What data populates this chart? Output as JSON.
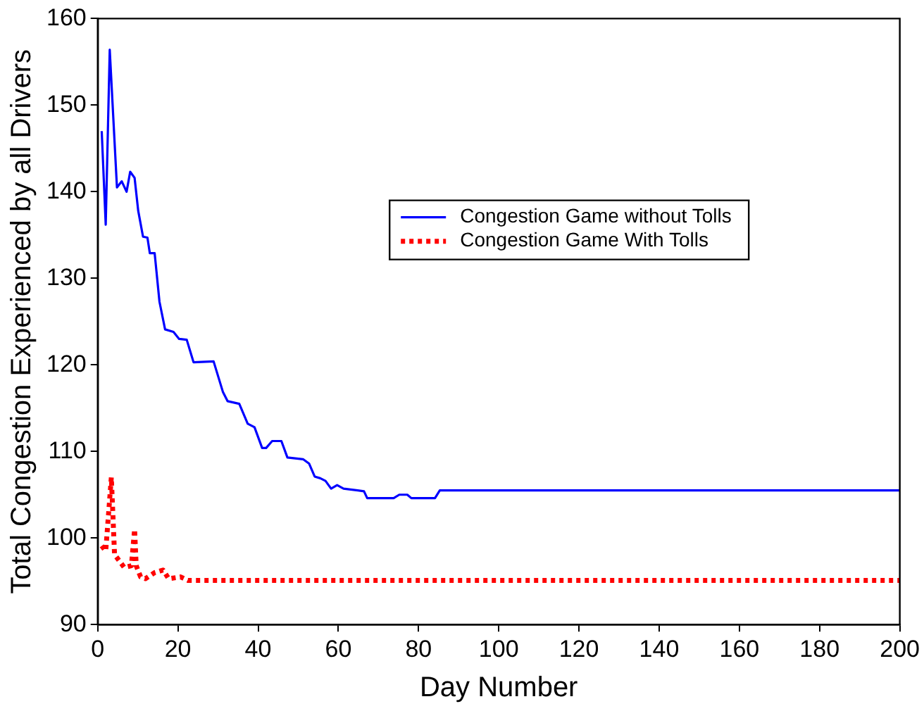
{
  "chart_data": {
    "type": "line",
    "xlabel": "Day Number",
    "ylabel": "Total Congestion Experienced by all Drivers",
    "xlim": [
      0,
      200
    ],
    "xticks": [
      0,
      20,
      40,
      60,
      80,
      100,
      120,
      140,
      160,
      180,
      200
    ],
    "ylim": [
      90,
      160
    ],
    "yticks": [
      90,
      100,
      110,
      120,
      130,
      140,
      150,
      160
    ],
    "grid": false,
    "legend": "center",
    "marker": "none",
    "series": [
      {
        "name": "Congestion Game without Tolls",
        "color": "#0000ff",
        "line_style": "solid",
        "x": [
          1,
          2,
          3,
          4.8,
          6,
          7.2,
          8.1,
          9.2,
          10.1,
          11.3,
          12.4,
          13,
          14.2,
          15.4,
          16.8,
          18.9,
          20.3,
          22.2,
          23.9,
          28.9,
          31.2,
          32.4,
          35.3,
          37.4,
          39.1,
          41,
          42,
          43.5,
          45.8,
          47.3,
          51.2,
          52.7,
          54.1,
          55.5,
          56.8,
          58.2,
          59.7,
          61.3,
          66.4,
          67.2,
          73.8,
          75.2,
          77.2,
          78.2,
          84.1,
          85.3,
          200
        ],
        "values": [
          147,
          136.2,
          156.4,
          140.5,
          141.2,
          140,
          142.3,
          141.6,
          137.8,
          134.8,
          134.7,
          132.9,
          132.9,
          127.3,
          124.1,
          123.8,
          123,
          122.9,
          120.3,
          120.4,
          116.9,
          115.8,
          115.5,
          113.2,
          112.8,
          110.4,
          110.4,
          111.2,
          111.2,
          109.3,
          109.1,
          108.6,
          107.1,
          106.9,
          106.6,
          105.7,
          106.1,
          105.7,
          105.4,
          104.6,
          104.6,
          105,
          105,
          104.6,
          104.6,
          105.5,
          105.5
        ]
      },
      {
        "name": "Congestion Game With Tolls",
        "color": "#ff0000",
        "line_style": "dotted",
        "x": [
          1,
          2,
          3.4,
          4.2,
          6.6,
          8.4,
          9.2,
          9.6,
          10.7,
          11.9,
          14.2,
          16.3,
          17.7,
          20.7,
          22.5,
          200
        ],
        "values": [
          99.1,
          98.5,
          107,
          98.1,
          96.6,
          96.8,
          101,
          96.8,
          95.5,
          95.3,
          96,
          96.3,
          95.3,
          95.5,
          95.1,
          95.1
        ]
      }
    ]
  }
}
